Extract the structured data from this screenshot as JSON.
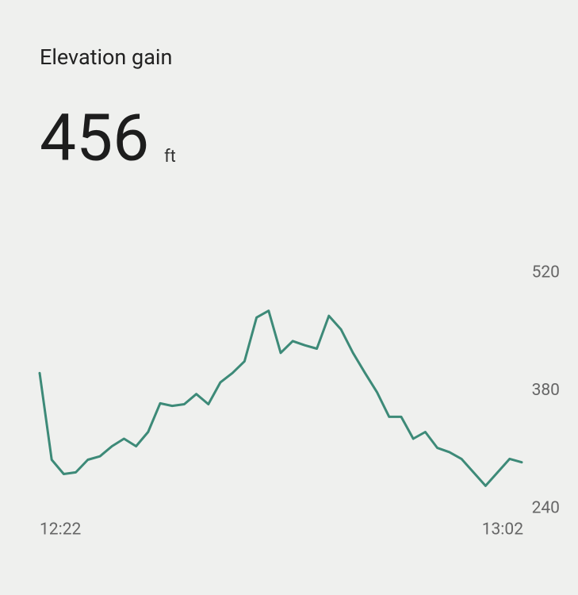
{
  "header": {
    "title": "Elevation gain",
    "value": "456",
    "unit": "ft"
  },
  "chart_data": {
    "type": "line",
    "categories": [
      "12:22",
      null,
      null,
      null,
      null,
      null,
      null,
      null,
      null,
      null,
      null,
      null,
      null,
      null,
      null,
      null,
      null,
      null,
      null,
      null,
      null,
      null,
      null,
      null,
      null,
      null,
      null,
      null,
      null,
      null,
      null,
      null,
      null,
      null,
      null,
      null,
      null,
      null,
      null,
      null,
      "13:02"
    ],
    "values": [
      401,
      298,
      281,
      283,
      298,
      302,
      314,
      323,
      314,
      331,
      365,
      362,
      364,
      376,
      364,
      390,
      401,
      415,
      467,
      475,
      425,
      439,
      434,
      430,
      469,
      453,
      425,
      401,
      378,
      349,
      349,
      323,
      331,
      312,
      307,
      299,
      283,
      267,
      283,
      299,
      295
    ],
    "color": "#3d8a78",
    "ylim": [
      240,
      520
    ],
    "yticks": [
      240,
      380,
      520
    ],
    "grid": false
  }
}
